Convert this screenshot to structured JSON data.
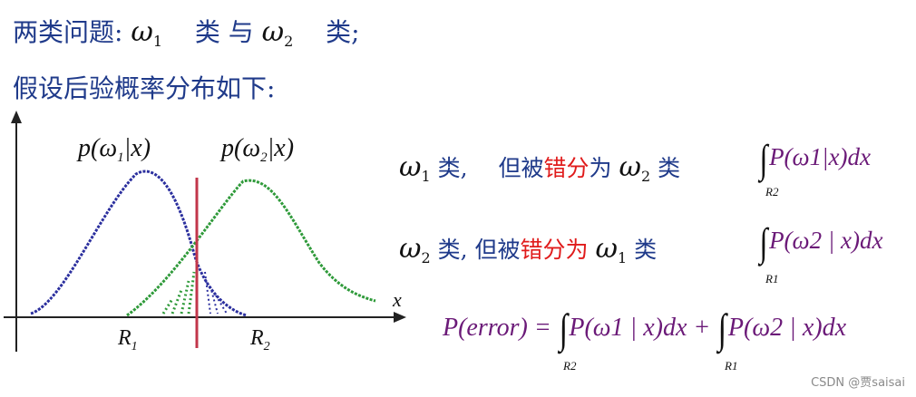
{
  "header": {
    "line1_prefix": "两类问题:",
    "line1_class_word": "类",
    "line1_and": "与",
    "line1_end": "类;",
    "omega": "ω",
    "sub1": "1",
    "sub2": "2",
    "line2": "假设后验概率分布如下:"
  },
  "diagram": {
    "posterior1_label": "p(ω1|x)",
    "posterior2_label": "p(ω2|x)",
    "x_axis_label": "x",
    "region1_label": "R",
    "region2_label": "R",
    "region1_sub": "1",
    "region2_sub": "2",
    "colors": {
      "curve1": "#2b2f9e",
      "curve2": "#2f9a3a",
      "boundary": "#c2364a",
      "axes": "#222222"
    }
  },
  "rules": [
    {
      "lead_omega": "ω",
      "lead_sub": "1",
      "lead_text": "类,",
      "but": "但被",
      "err": "错分",
      "as": "为",
      "tail_omega": "ω",
      "tail_sub": "2",
      "tail_text": "类",
      "integral_body": "P(ω1|x)dx",
      "integral_lim": "R2"
    },
    {
      "lead_omega": "ω",
      "lead_sub": "2",
      "lead_text": "类,",
      "but": "但被",
      "err": "错分为",
      "as": "",
      "tail_omega": "ω",
      "tail_sub": "1",
      "tail_text": "类",
      "integral_body": "P(ω2 | x)dx",
      "integral_lim": "R1"
    }
  ],
  "error_formula": {
    "lhs": "P(error) =",
    "term1": "P(ω1 | x)dx +",
    "term2": "P(ω2 | x)dx",
    "lim1": "R2",
    "lim2": "R1"
  },
  "watermark": "CSDN @贾saisai"
}
